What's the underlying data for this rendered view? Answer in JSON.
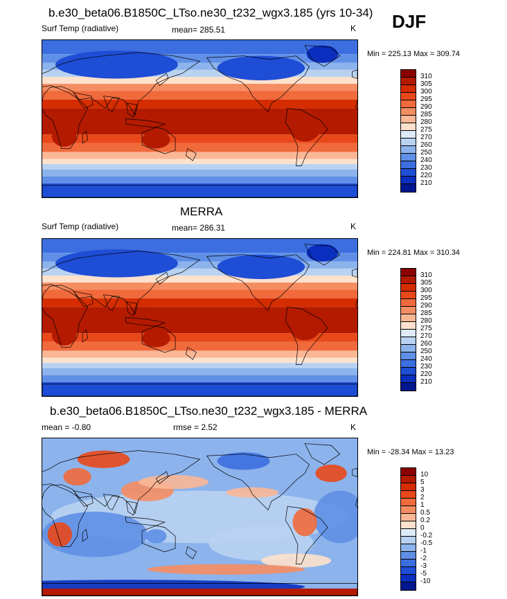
{
  "season": "DJF",
  "panels": [
    {
      "title": "b.e30_beta06.B1850C_LTso.ne30_t232_wgx3.185 (yrs 10-34)",
      "left_label": "Surf Temp (radiative)",
      "center_label": "mean= 285.51",
      "units": "K",
      "minmax": "Min = 225.13 Max = 309.74",
      "colorbar": {
        "labels": [
          "310",
          "305",
          "300",
          "295",
          "290",
          "285",
          "280",
          "275",
          "270",
          "260",
          "250",
          "240",
          "230",
          "220",
          "210"
        ],
        "colors": [
          "#8b0000",
          "#b31a00",
          "#d52d00",
          "#e8481a",
          "#f06a3c",
          "#f58d62",
          "#f9b796",
          "#fde1cc",
          "#ddeaf7",
          "#b9d2f2",
          "#8cb3ec",
          "#5f8fe6",
          "#3c6ee0",
          "#1e4dd6",
          "#0a2fbe",
          "#00178f"
        ]
      },
      "map_style": "abs"
    },
    {
      "title": "MERRA",
      "left_label": "Surf Temp (radiative)",
      "center_label": "mean= 286.31",
      "units": "K",
      "minmax": "Min = 224.81 Max = 310.34",
      "colorbar": {
        "labels": [
          "310",
          "305",
          "300",
          "295",
          "290",
          "285",
          "280",
          "275",
          "270",
          "260",
          "250",
          "240",
          "230",
          "220",
          "210"
        ],
        "colors": [
          "#8b0000",
          "#b31a00",
          "#d52d00",
          "#e8481a",
          "#f06a3c",
          "#f58d62",
          "#f9b796",
          "#fde1cc",
          "#ddeaf7",
          "#b9d2f2",
          "#8cb3ec",
          "#5f8fe6",
          "#3c6ee0",
          "#1e4dd6",
          "#0a2fbe",
          "#00178f"
        ]
      },
      "map_style": "abs"
    },
    {
      "title": "b.e30_beta06.B1850C_LTso.ne30_t232_wgx3.185 - MERRA",
      "left_label": "mean =  -0.80",
      "center_label": "rmse =   2.52",
      "units": "K",
      "minmax": "Min = -28.34 Max =  13.23",
      "colorbar": {
        "labels": [
          "10",
          "5",
          "3",
          "2",
          "1",
          "0.5",
          "0.2",
          "0",
          "-0.2",
          "-0.5",
          "-1",
          "-2",
          "-3",
          "-5",
          "-10"
        ],
        "colors": [
          "#8b0000",
          "#b31a00",
          "#d52d00",
          "#e8481a",
          "#f06a3c",
          "#f58d62",
          "#f9b796",
          "#fde1cc",
          "#ddeaf7",
          "#b9d2f2",
          "#8cb3ec",
          "#5f8fe6",
          "#3c6ee0",
          "#1e4dd6",
          "#0a2fbe",
          "#00178f"
        ]
      },
      "map_style": "diff"
    }
  ]
}
